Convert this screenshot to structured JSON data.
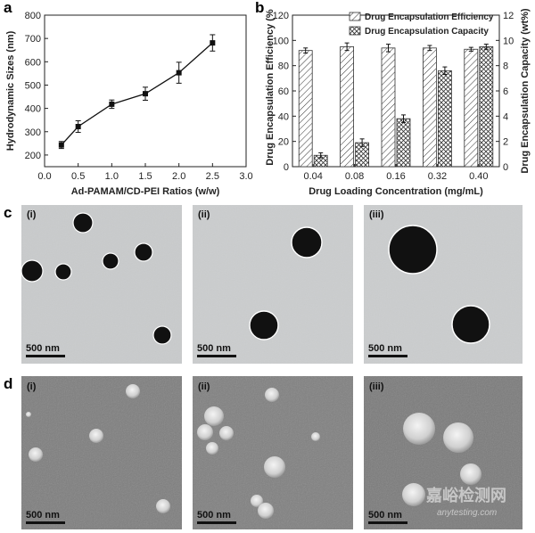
{
  "panel_labels": {
    "a": "a",
    "b": "b",
    "c": "c",
    "d": "d"
  },
  "chart_data": [
    {
      "type": "line",
      "panel": "a",
      "x": [
        0.25,
        0.5,
        1.0,
        1.5,
        2.0,
        2.5
      ],
      "y": [
        243,
        322,
        418,
        463,
        553,
        681
      ],
      "y_err": [
        15,
        25,
        18,
        28,
        45,
        35
      ],
      "xlabel": "Ad-PAMAM/CD-PEI Ratios (w/w)",
      "ylabel": "Hydrodynamic Sizes (nm)",
      "xlim": [
        0.0,
        3.0
      ],
      "ylim": [
        150,
        800
      ],
      "xticks": [
        0.0,
        0.5,
        1.0,
        1.5,
        2.0,
        2.5,
        3.0
      ],
      "xtick_labels": [
        "0.0",
        "0.5",
        "1.0",
        "1.5",
        "2.0",
        "2.5",
        "3.0"
      ],
      "yticks": [
        200,
        300,
        400,
        500,
        600,
        700,
        800
      ],
      "ytick_labels": [
        "200",
        "300",
        "400",
        "500",
        "600",
        "700",
        "800"
      ],
      "marker": "square",
      "grid": false
    },
    {
      "type": "bar",
      "panel": "b",
      "categories": [
        "0.04",
        "0.08",
        "0.16",
        "0.32",
        "0.40"
      ],
      "series": [
        {
          "name": "Drug Encapsulation Efficiency",
          "axis": "left",
          "pattern": "diagonal",
          "values": [
            92,
            95,
            94,
            94,
            93
          ],
          "errors": [
            2,
            3,
            3,
            2,
            1.5
          ]
        },
        {
          "name": "Drug Encapsulation Capacity",
          "axis": "right",
          "pattern": "crosshatch",
          "values": [
            0.9,
            1.9,
            3.8,
            7.6,
            9.5
          ],
          "errors": [
            0.2,
            0.3,
            0.3,
            0.3,
            0.2
          ]
        }
      ],
      "xlabel": "Drug Loading Concentration (mg/mL)",
      "ylabel_left": "Drug Encapsulation Efficiency (%",
      "ylabel_right": "Drug  Encapsulation Capacity (wt%)",
      "ylim_left": [
        0,
        120
      ],
      "ylim_right": [
        0,
        12
      ],
      "yticks_left": [
        0,
        20,
        40,
        60,
        80,
        100,
        120
      ],
      "ytick_labels_left": [
        "0",
        "20",
        "40",
        "60",
        "80",
        "100",
        "120"
      ],
      "yticks_right": [
        0,
        2,
        4,
        6,
        8,
        10,
        12
      ],
      "ytick_labels_right": [
        "0",
        "2",
        "4",
        "6",
        "8",
        "10",
        "12"
      ],
      "legend_position": "top-center",
      "grid": false
    }
  ],
  "micrographs": {
    "c": {
      "style": "TEM",
      "images": [
        {
          "label": "(i)",
          "scale_bar": "500 nm"
        },
        {
          "label": "(ii)",
          "scale_bar": "500 nm"
        },
        {
          "label": "(iii)",
          "scale_bar": "500 nm"
        }
      ]
    },
    "d": {
      "style": "SEM",
      "images": [
        {
          "label": "(i)",
          "scale_bar": "500 nm"
        },
        {
          "label": "(ii)",
          "scale_bar": "500 nm"
        },
        {
          "label": "(iii)",
          "scale_bar": "500 nm"
        }
      ]
    }
  },
  "watermark": {
    "text_cn": "嘉峪检测网",
    "text_en": "anytesting.com"
  }
}
